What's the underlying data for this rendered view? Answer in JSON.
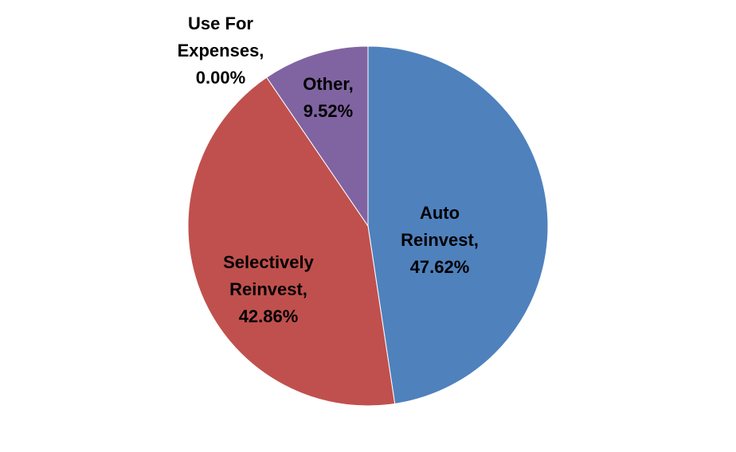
{
  "chart_data": {
    "type": "pie",
    "title": "",
    "start_angle_deg": 0,
    "direction": "clockwise",
    "slices": [
      {
        "name": "Auto Reinvest",
        "label_lines": [
          "Auto",
          "Reinvest,",
          "47.62%"
        ],
        "value": 47.62,
        "color": "#4F81BD"
      },
      {
        "name": "Selectively Reinvest",
        "label_lines": [
          "Selectively",
          "Reinvest,",
          "42.86%"
        ],
        "value": 42.86,
        "color": "#C0504D"
      },
      {
        "name": "Use For Expenses",
        "label_lines": [
          "Use For",
          "Expenses,",
          "0.00%"
        ],
        "value": 0.0,
        "color": "#9BBB59"
      },
      {
        "name": "Other",
        "label_lines": [
          "Other,",
          "9.52%"
        ],
        "value": 9.52,
        "color": "#8064A2"
      }
    ]
  }
}
